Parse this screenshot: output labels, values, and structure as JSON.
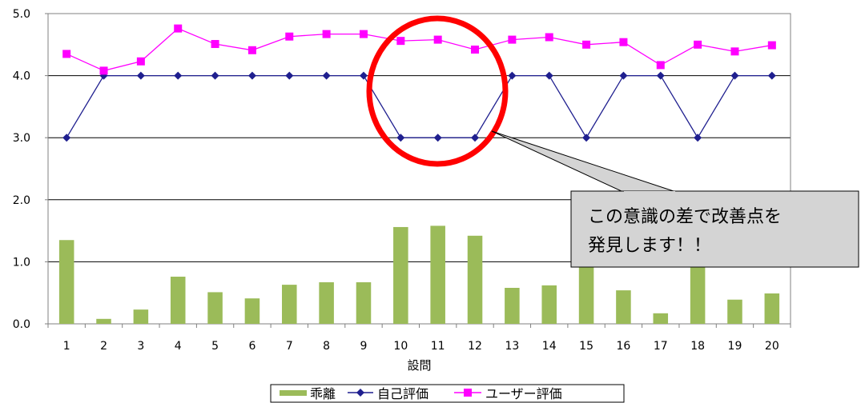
{
  "chart_data": {
    "type": "bar",
    "categories": [
      "1",
      "2",
      "3",
      "4",
      "5",
      "6",
      "7",
      "8",
      "9",
      "10",
      "11",
      "12",
      "13",
      "14",
      "15",
      "16",
      "17",
      "18",
      "19",
      "20"
    ],
    "series": [
      {
        "name": "乖離",
        "type": "bar",
        "color": "#9bbb59",
        "values": [
          1.35,
          0.08,
          0.23,
          0.76,
          0.51,
          0.41,
          0.63,
          0.67,
          0.67,
          1.56,
          1.58,
          1.42,
          0.58,
          0.62,
          1.5,
          0.54,
          0.17,
          1.5,
          0.39,
          0.49
        ]
      },
      {
        "name": "自己評価",
        "type": "line",
        "color": "#1f1f8f",
        "values": [
          3,
          4,
          4,
          4,
          4,
          4,
          4,
          4,
          4,
          3,
          3,
          3,
          4,
          4,
          3,
          4,
          4,
          3,
          4,
          4
        ]
      },
      {
        "name": "ユーザー評価",
        "type": "line",
        "color": "#ff00ff",
        "values": [
          4.35,
          4.08,
          4.23,
          4.76,
          4.51,
          4.41,
          4.63,
          4.67,
          4.67,
          4.56,
          4.58,
          4.42,
          4.58,
          4.62,
          4.5,
          4.54,
          4.17,
          4.5,
          4.39,
          4.49
        ]
      }
    ],
    "y_ticks": [
      "0.0",
      "1.0",
      "2.0",
      "3.0",
      "4.0",
      "5.0"
    ],
    "ylim": [
      0,
      5
    ],
    "xlabel": "設問",
    "grid": true,
    "legend_position": "bottom",
    "annotation": {
      "lines": [
        "この意識の差で改善点を",
        "発見します！！"
      ],
      "highlight_categories": [
        "10",
        "11",
        "12"
      ],
      "highlight_color": "#ff0000"
    }
  }
}
